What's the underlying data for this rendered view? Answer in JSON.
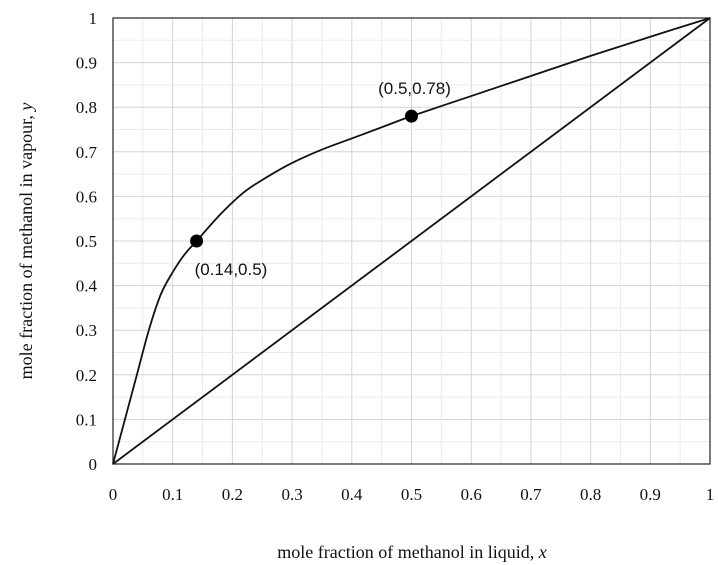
{
  "chart_data": {
    "type": "line",
    "xlabel_text": "mole fraction of methanol in liquid, ",
    "xlabel_var": "x",
    "ylabel_text": "mole fraction of methanol in vapour, ",
    "ylabel_var": "y",
    "xlim": [
      0,
      1
    ],
    "ylim": [
      0,
      1
    ],
    "x_ticks": [
      "0",
      "0.1",
      "0.2",
      "0.3",
      "0.4",
      "0.5",
      "0.6",
      "0.7",
      "0.8",
      "0.9",
      "1"
    ],
    "y_ticks": [
      "0",
      "0.1",
      "0.2",
      "0.3",
      "0.4",
      "0.5",
      "0.6",
      "0.7",
      "0.8",
      "0.9",
      "1"
    ],
    "grid": true,
    "series": [
      {
        "kind": "equilibrium-curve",
        "x": [
          0,
          0.02,
          0.04,
          0.06,
          0.08,
          0.1,
          0.12,
          0.14,
          0.18,
          0.22,
          0.26,
          0.3,
          0.35,
          0.4,
          0.45,
          0.5,
          0.6,
          0.7,
          0.8,
          0.9,
          1.0
        ],
        "y": [
          0,
          0.1,
          0.2,
          0.3,
          0.38,
          0.43,
          0.47,
          0.5,
          0.56,
          0.61,
          0.645,
          0.675,
          0.705,
          0.73,
          0.755,
          0.78,
          0.825,
          0.87,
          0.915,
          0.958,
          1.0
        ]
      },
      {
        "kind": "diagonal",
        "x": [
          0,
          1
        ],
        "y": [
          0,
          1
        ]
      }
    ],
    "points": [
      {
        "x": 0.14,
        "y": 0.5,
        "label": "(0.14,0.5)",
        "label_pos": "below-right"
      },
      {
        "x": 0.5,
        "y": 0.78,
        "label": "(0.5,0.78)",
        "label_pos": "above"
      }
    ]
  }
}
